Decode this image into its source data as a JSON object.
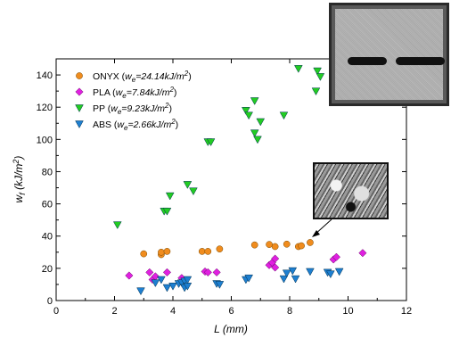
{
  "chart_data": {
    "type": "scatter",
    "xlabel": "L (mm)",
    "ylabel": "w_f (kJ/m^2)",
    "xlim": [
      0,
      12
    ],
    "ylim": [
      0,
      150
    ],
    "xticks": [
      0,
      2,
      4,
      6,
      8,
      10,
      12
    ],
    "yticks": [
      0,
      20,
      40,
      60,
      80,
      100,
      120,
      140
    ],
    "grid": false,
    "legend_position": "top-left",
    "series": [
      {
        "name": "ONYX (w_e=24.14kJ/m^2)",
        "legend_prefix": "ONYX (",
        "legend_sub": "e",
        "legend_value": "=24.14kJ/m",
        "marker": "circle",
        "color": "#f08c1e",
        "points": [
          [
            3.0,
            29
          ],
          [
            3.6,
            28.5
          ],
          [
            3.6,
            30
          ],
          [
            3.8,
            30.5
          ],
          [
            5.0,
            30.5
          ],
          [
            5.2,
            30.5
          ],
          [
            5.6,
            32
          ],
          [
            6.8,
            34.5
          ],
          [
            7.3,
            34.8
          ],
          [
            7.5,
            33.5
          ],
          [
            7.9,
            35
          ],
          [
            8.3,
            33.5
          ],
          [
            8.4,
            34
          ],
          [
            8.7,
            36
          ]
        ]
      },
      {
        "name": "PLA (w_e=7.84kJ/m^2)",
        "legend_prefix": "PLA (",
        "legend_sub": "e",
        "legend_value": "=7.84kJ/m",
        "marker": "diamond",
        "color": "#e020e0",
        "points": [
          [
            2.5,
            15.5
          ],
          [
            3.2,
            17.5
          ],
          [
            3.3,
            13
          ],
          [
            3.4,
            15
          ],
          [
            3.8,
            17.5
          ],
          [
            4.3,
            14
          ],
          [
            5.1,
            18
          ],
          [
            5.2,
            17.5
          ],
          [
            5.5,
            17.5
          ],
          [
            7.3,
            22
          ],
          [
            7.4,
            23.5
          ],
          [
            7.5,
            26
          ],
          [
            7.5,
            20.5
          ],
          [
            9.5,
            25.5
          ],
          [
            9.6,
            27
          ],
          [
            10.5,
            29.5
          ]
        ]
      },
      {
        "name": "PP (w_e=9.23kJ/m^2)",
        "legend_prefix": "PP (",
        "legend_sub": "e",
        "legend_value": "=9.23kJ/m",
        "marker": "triangle-down",
        "color": "#22cc22",
        "points": [
          [
            2.1,
            47
          ],
          [
            3.7,
            55.5
          ],
          [
            3.8,
            55.5
          ],
          [
            3.9,
            65
          ],
          [
            4.5,
            72
          ],
          [
            4.7,
            68
          ],
          [
            5.2,
            98.5
          ],
          [
            5.3,
            98.5
          ],
          [
            6.5,
            118
          ],
          [
            6.6,
            115
          ],
          [
            6.8,
            124
          ],
          [
            6.8,
            104
          ],
          [
            6.9,
            100
          ],
          [
            7.0,
            111
          ],
          [
            7.8,
            115
          ],
          [
            8.3,
            144
          ],
          [
            8.9,
            130
          ],
          [
            8.95,
            142.5
          ],
          [
            9.05,
            139
          ]
        ]
      },
      {
        "name": "ABS (w_e=2.66kJ/m^2)",
        "legend_prefix": "ABS (",
        "legend_sub": "e",
        "legend_value": "=2.66kJ/m",
        "marker": "triangle-down",
        "color": "#1e7fd0",
        "points": [
          [
            2.9,
            6
          ],
          [
            3.4,
            11
          ],
          [
            3.6,
            13
          ],
          [
            3.8,
            8
          ],
          [
            4.0,
            9
          ],
          [
            4.2,
            10.5
          ],
          [
            4.3,
            11
          ],
          [
            4.4,
            12
          ],
          [
            4.4,
            8
          ],
          [
            4.5,
            9
          ],
          [
            4.5,
            13
          ],
          [
            5.5,
            10.5
          ],
          [
            5.6,
            10
          ],
          [
            6.5,
            13
          ],
          [
            6.6,
            14
          ],
          [
            7.8,
            13.5
          ],
          [
            7.9,
            17
          ],
          [
            8.1,
            18.5
          ],
          [
            8.2,
            13.5
          ],
          [
            8.7,
            18
          ],
          [
            9.3,
            17.5
          ],
          [
            9.4,
            16.5
          ],
          [
            9.7,
            18
          ]
        ]
      }
    ]
  }
}
